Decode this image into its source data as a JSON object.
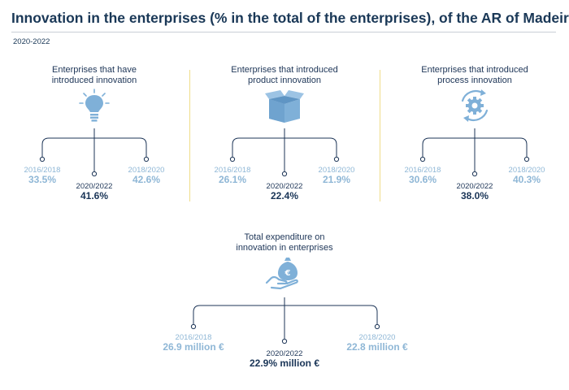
{
  "header": {
    "title": "Innovation in the enterprises (% in the total of the enterprises), of the AR of Madeira",
    "period": "2020-2022"
  },
  "panels": [
    {
      "title_line1": "Enterprises that have",
      "title_line2": "introduced innovation",
      "icon": "lightbulb-icon",
      "left": {
        "year": "2016/2018",
        "value": "33.5%"
      },
      "center": {
        "year": "2020/2022",
        "value": "41.6%"
      },
      "right": {
        "year": "2018/2020",
        "value": "42.6%"
      }
    },
    {
      "title_line1": "Enterprises that introduced",
      "title_line2": "product innovation",
      "icon": "box-icon",
      "left": {
        "year": "2016/2018",
        "value": "26.1%"
      },
      "center": {
        "year": "2020/2022",
        "value": "22.4%"
      },
      "right": {
        "year": "2018/2020",
        "value": "21.9%"
      }
    },
    {
      "title_line1": "Enterprises that introduced",
      "title_line2": "process innovation",
      "icon": "gear-cycle-icon",
      "left": {
        "year": "2016/2018",
        "value": "30.6%"
      },
      "center": {
        "year": "2020/2022",
        "value": "38.0%"
      },
      "right": {
        "year": "2018/2020",
        "value": "40.3%"
      }
    },
    {
      "title_line1": "Total expenditure on",
      "title_line2": "innovation in enterprises",
      "icon": "money-bag-hand-icon",
      "left": {
        "year": "2016/2018",
        "value": "26.9 million €"
      },
      "center": {
        "year": "2020/2022",
        "value": "22.9% million €"
      },
      "right": {
        "year": "2018/2020",
        "value": "22.8 million €"
      }
    }
  ],
  "colors": {
    "title": "#1a3857",
    "icon": "#7fb0d8",
    "side_value": "#8fb7d6",
    "center_value": "#1a3557",
    "separator": "#f0dd8a"
  }
}
